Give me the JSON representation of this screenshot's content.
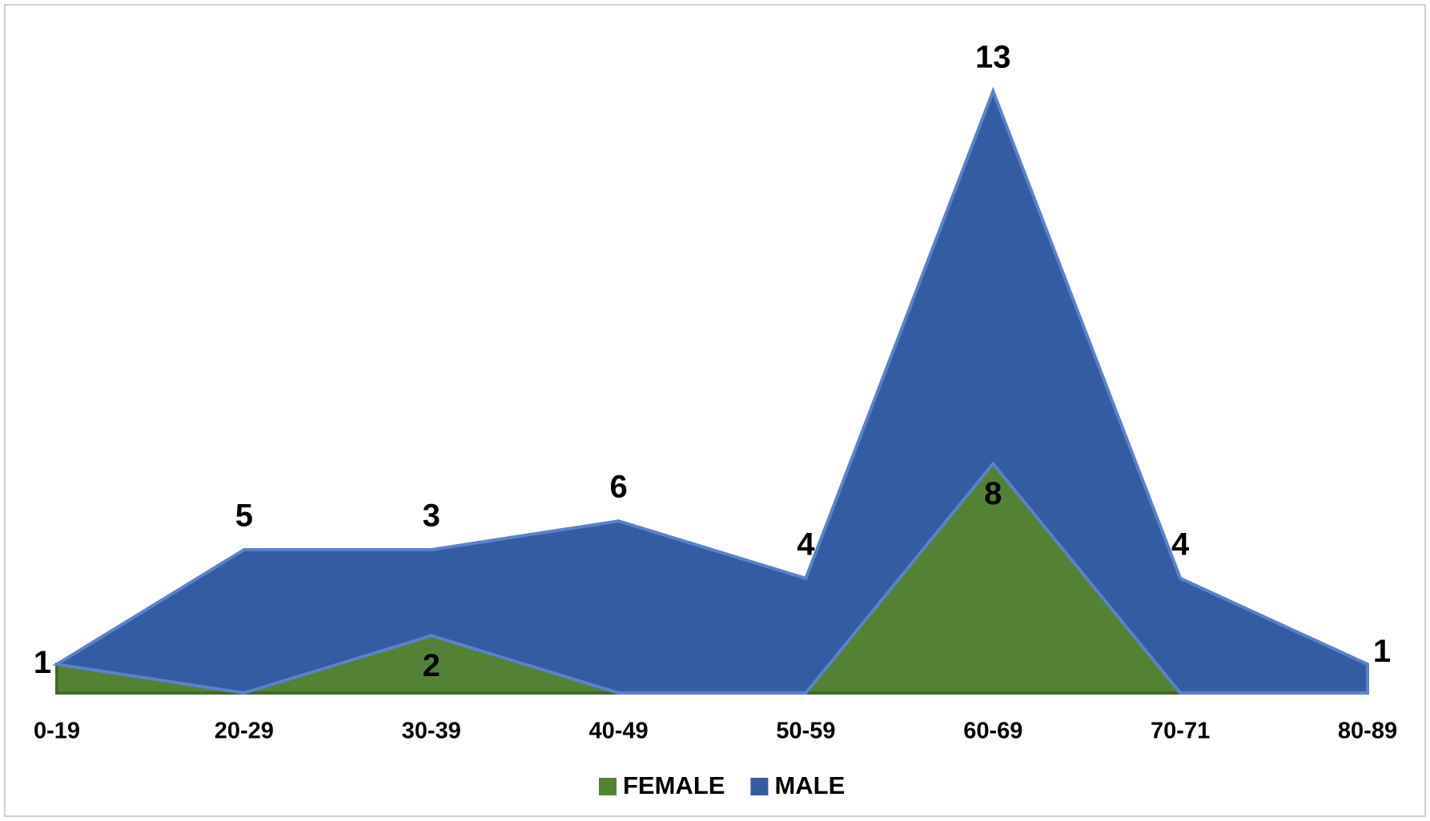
{
  "chart_data": {
    "type": "stacked_area",
    "categories": [
      "0-19",
      "20-29",
      "30-39",
      "40-49",
      "50-59",
      "60-69",
      "70-71",
      "80-89"
    ],
    "series": [
      {
        "name": "FEMALE",
        "color": "#548235",
        "values": [
          1,
          0,
          2,
          0,
          0,
          8,
          0,
          0
        ]
      },
      {
        "name": "MALE",
        "color": "#335ca3",
        "values": [
          0,
          5,
          3,
          6,
          4,
          13,
          4,
          1
        ]
      }
    ],
    "legend": "bottom"
  }
}
